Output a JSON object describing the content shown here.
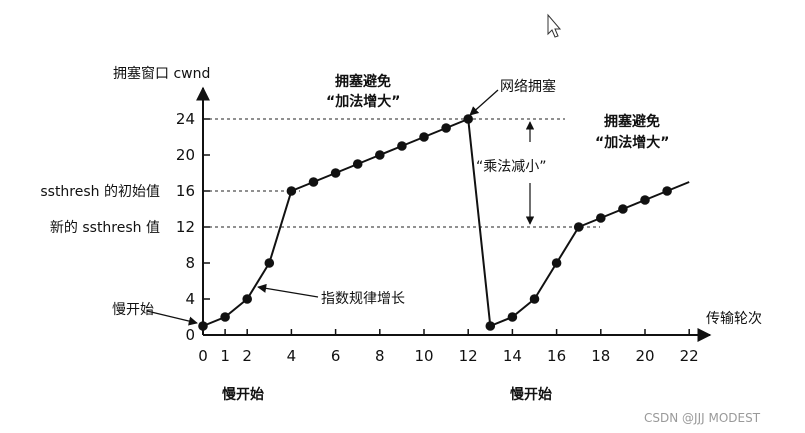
{
  "chart_data": {
    "type": "line",
    "ylabel": "拥塞窗口 cwnd",
    "xlabel": "传输轮次",
    "xlim": [
      0,
      22
    ],
    "ylim": [
      0,
      24
    ],
    "x_ticks": [
      {
        "value": 0,
        "label": "0"
      },
      {
        "value": 1,
        "label": "1"
      },
      {
        "value": 2,
        "label": "2"
      },
      {
        "value": 4,
        "label": "4"
      },
      {
        "value": 6,
        "label": "6"
      },
      {
        "value": 8,
        "label": "8"
      },
      {
        "value": 10,
        "label": "10"
      },
      {
        "value": 12,
        "label": "12"
      },
      {
        "value": 14,
        "label": "14"
      },
      {
        "value": 16,
        "label": "16"
      },
      {
        "value": 18,
        "label": "18"
      },
      {
        "value": 20,
        "label": "20"
      },
      {
        "value": 22,
        "label": "22"
      }
    ],
    "y_ticks": [
      {
        "value": 0,
        "label": "0"
      },
      {
        "value": 4,
        "label": "4"
      },
      {
        "value": 8,
        "label": "8"
      },
      {
        "value": 12,
        "label": "12"
      },
      {
        "value": 16,
        "label": "16"
      },
      {
        "value": 20,
        "label": "20"
      },
      {
        "value": 24,
        "label": "24"
      }
    ],
    "y_ref_lines": [
      {
        "value": 24,
        "label": ""
      },
      {
        "value": 16,
        "label": "ssthresh 的初始值"
      },
      {
        "value": 12,
        "label": "新的 ssthresh 值"
      }
    ],
    "series": [
      {
        "name": "",
        "color": "#111111",
        "points": [
          [
            0,
            1
          ],
          [
            1,
            2
          ],
          [
            2,
            4
          ],
          [
            3,
            8
          ],
          [
            4,
            16
          ],
          [
            5,
            17
          ],
          [
            6,
            18
          ],
          [
            7,
            19
          ],
          [
            8,
            20
          ],
          [
            9,
            21
          ],
          [
            10,
            22
          ],
          [
            11,
            23
          ],
          [
            12,
            24
          ],
          [
            13,
            1
          ],
          [
            14,
            2
          ],
          [
            15,
            4
          ],
          [
            16,
            8
          ],
          [
            17,
            12
          ],
          [
            18,
            13
          ],
          [
            19,
            14
          ],
          [
            20,
            15
          ],
          [
            21,
            16
          ]
        ],
        "tail": [
          [
            22,
            17
          ]
        ]
      }
    ],
    "annotations": {
      "ca_top": [
        "拥塞避免",
        "“加法增大”"
      ],
      "ca_right": [
        "拥塞避免",
        "“加法增大”"
      ],
      "congestion": "网络拥塞",
      "multiplicative": "“乘法减小”",
      "exponential": "指数规律增长",
      "slow_start_left": "慢开始",
      "slow_start_bottom_1": "慢开始",
      "slow_start_bottom_2": "慢开始"
    },
    "grid": false
  },
  "watermark": "CSDN @JJJ MODEST"
}
